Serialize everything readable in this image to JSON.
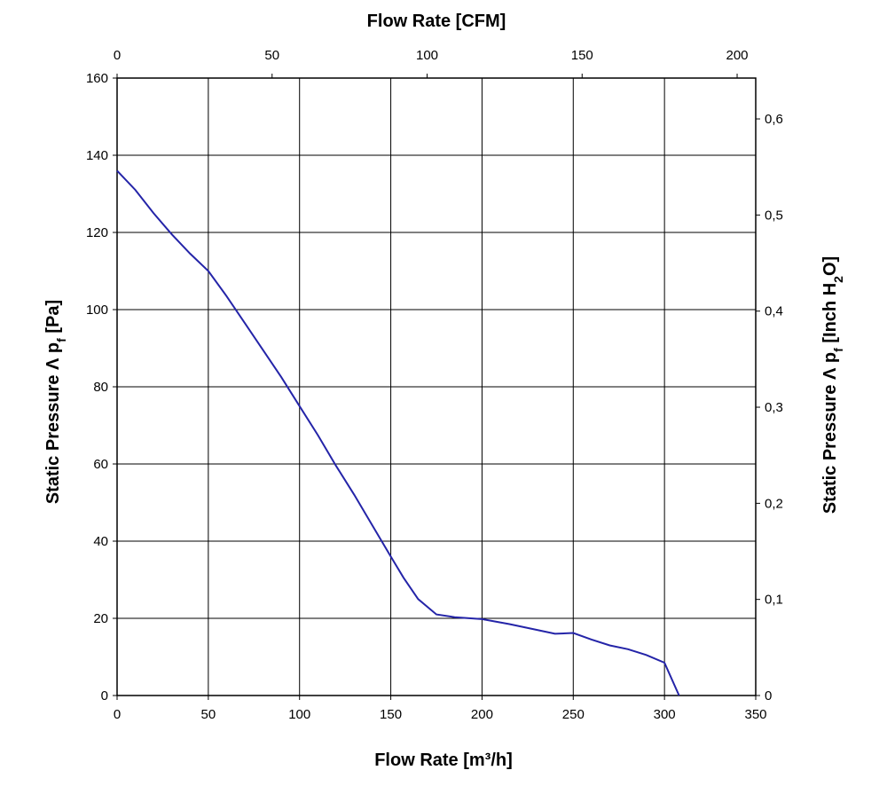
{
  "chart_data": {
    "type": "line",
    "bottom_axis": {
      "label": "Flow Rate [m³/h]",
      "range": [
        0,
        350
      ],
      "ticks": [
        "0",
        "50",
        "100",
        "150",
        "200",
        "250",
        "300",
        "350"
      ]
    },
    "top_axis": {
      "label": "Flow Rate [CFM]",
      "range": [
        0,
        206
      ],
      "ticks": [
        "0",
        "50",
        "100",
        "150",
        "200"
      ]
    },
    "left_axis": {
      "label_main": "Static Pressure Λ p",
      "label_sub": "f",
      "label_end": " [Pa]",
      "range": [
        0,
        160
      ],
      "ticks": [
        "0",
        "20",
        "40",
        "60",
        "80",
        "100",
        "120",
        "140",
        "160"
      ]
    },
    "right_axis": {
      "label_main": "Static Pressure Λ p",
      "label_sub": "f",
      "label_mid": " [Inch H",
      "label_sub2": "2",
      "label_end": "O]",
      "range": [
        0,
        0.6425
      ],
      "ticks": [
        "0",
        "0,1",
        "0,2",
        "0,3",
        "0,4",
        "0,5",
        "0,6"
      ]
    },
    "grid": true,
    "series": [
      {
        "color": "#2424a8",
        "x": [
          0,
          10,
          20,
          30,
          40,
          50,
          60,
          70,
          80,
          90,
          100,
          110,
          120,
          130,
          140,
          150,
          157,
          165,
          175,
          185,
          200,
          215,
          230,
          240,
          250,
          260,
          270,
          280,
          290,
          300,
          308
        ],
        "y": [
          136,
          131,
          125,
          119.5,
          114.5,
          110,
          103.5,
          96.5,
          89.5,
          82.5,
          75,
          67.5,
          59.5,
          52,
          44,
          36,
          30.5,
          25,
          21,
          20.3,
          19.8,
          18.5,
          17,
          16,
          16.2,
          14.5,
          13,
          12,
          10.5,
          8.5,
          0
        ]
      }
    ]
  }
}
